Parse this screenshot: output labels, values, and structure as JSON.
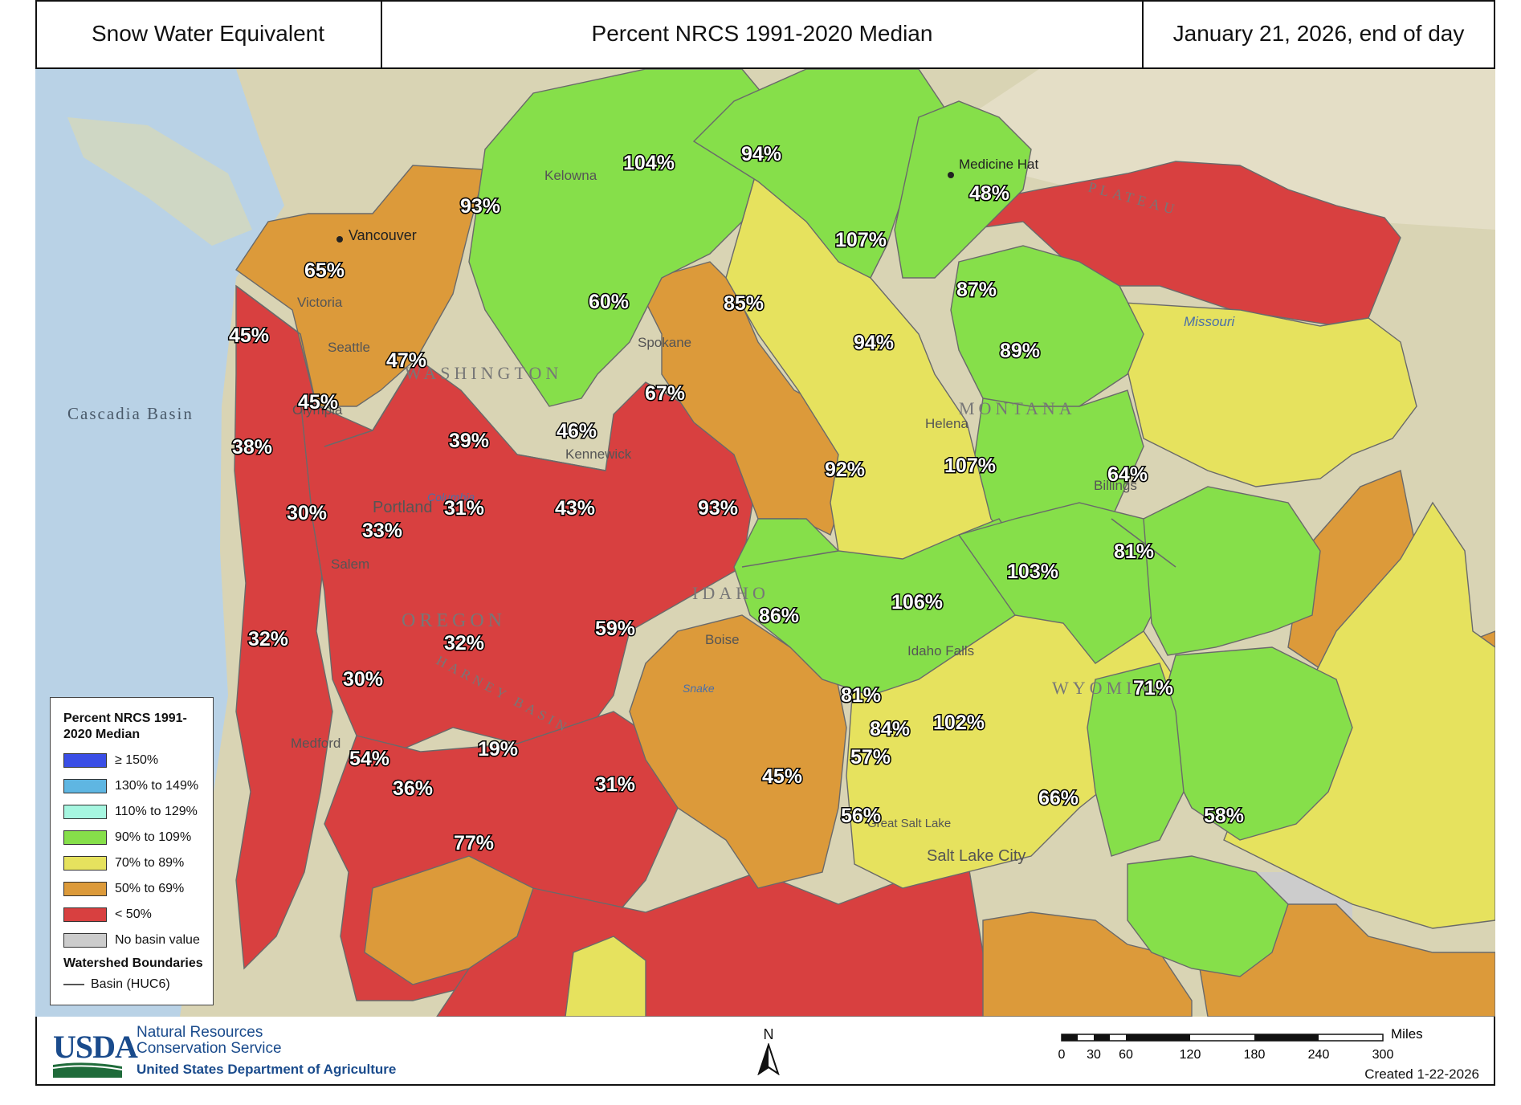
{
  "header": {
    "title": "Snow Water Equivalent",
    "metric": "Percent NRCS 1991-2020 Median",
    "date": "January 21, 2026, end of day"
  },
  "colors": {
    "below50": "#d84040",
    "p50_69": "#dc9a3a",
    "p70_89": "#e6e25e",
    "p90_109": "#86df4a",
    "p110_129": "#a6f6e0",
    "p130_149": "#5fb6e2",
    "p150": "#3a4ee6",
    "nobasin": "#cccccc",
    "ocean": "#b9d2e6",
    "land": "#d9d4b4"
  },
  "legend": {
    "title": "Percent NRCS 1991-2020 Median",
    "items": [
      {
        "label": "≥ 150%",
        "color": "#3a4ee6"
      },
      {
        "label": "130% to 149%",
        "color": "#5fb6e2"
      },
      {
        "label": "110% to 129%",
        "color": "#a6f6e0"
      },
      {
        "label": "90% to 109%",
        "color": "#86df4a"
      },
      {
        "label": "70% to 89%",
        "color": "#e6e25e"
      },
      {
        "label": "50% to 69%",
        "color": "#dc9a3a"
      },
      {
        "label": "< 50%",
        "color": "#d84040"
      },
      {
        "label": "No basin value",
        "color": "#cccccc"
      }
    ],
    "boundaries_title": "Watershed Boundaries",
    "basin_label": "Basin (HUC6)"
  },
  "basin_values": [
    "93%",
    "104%",
    "94%",
    "48%",
    "65%",
    "107%",
    "60%",
    "85%",
    "87%",
    "45%",
    "47%",
    "94%",
    "89%",
    "45%",
    "67%",
    "39%",
    "46%",
    "38%",
    "92%",
    "107%",
    "64%",
    "30%",
    "31%",
    "43%",
    "93%",
    "33%",
    "81%",
    "103%",
    "106%",
    "59%",
    "86%",
    "32%",
    "32%",
    "30%",
    "81%",
    "71%",
    "84%",
    "102%",
    "54%",
    "19%",
    "57%",
    "36%",
    "31%",
    "45%",
    "66%",
    "56%",
    "58%",
    "77%"
  ],
  "places": [
    "Vancouver",
    "Victoria",
    "Seattle",
    "Olympia",
    "Portland",
    "Salem",
    "Medford",
    "Kelowna",
    "Spokane",
    "Kennewick",
    "Boise",
    "Helena",
    "Billings",
    "Medicine Hat",
    "Idaho Falls",
    "Salt Lake City",
    "Great Salt Lake",
    "Cascadia Basin",
    "WASHINGTON",
    "OREGON",
    "IDAHO",
    "MONTANA",
    "WYOMING",
    "HARNEY BASIN",
    "PLATEAU",
    "Missouri",
    "Columbia",
    "Snake"
  ],
  "footer": {
    "agency_abbr": "USDA",
    "agency_line1": "Natural Resources",
    "agency_line2": "Conservation Service",
    "department": "United States Department of Agriculture",
    "north": "N",
    "scale_unit": "Miles",
    "scale_ticks": [
      "0",
      "30",
      "60",
      "120",
      "180",
      "240",
      "300"
    ],
    "created": "Created 1-22-2026"
  }
}
